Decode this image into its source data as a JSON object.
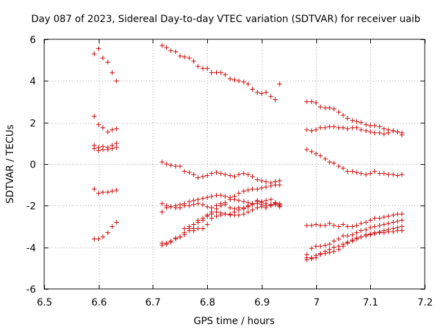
{
  "chart_data": {
    "type": "scatter",
    "title": "Day 087 of 2023, Sidereal Day-to-day VTEC variation (SDTVAR) for receiver uaib",
    "xlabel": "GPS time / hours",
    "ylabel": "SDTVAR / TECUs",
    "xlim": [
      6.5,
      7.2
    ],
    "ylim": [
      -6,
      6
    ],
    "xticks": [
      6.5,
      6.6,
      6.7,
      6.8,
      6.9,
      7.0,
      7.1,
      7.2
    ],
    "xtick_labels": [
      "6.5",
      "6.6",
      "6.7",
      "6.8",
      "6.9",
      "7",
      "7.1",
      "7.2"
    ],
    "yticks": [
      -6,
      -4,
      -2,
      0,
      2,
      4,
      6
    ],
    "ytick_labels": [
      "-6",
      "-4",
      "-2",
      "0",
      "2",
      "4",
      "6"
    ],
    "grid": true,
    "marker": "+",
    "color": "#cc0000",
    "series": [
      {
        "name": "block1-top",
        "x": [
          6.592,
          6.6,
          6.608,
          6.617,
          6.625,
          6.633
        ],
        "y": [
          5.3,
          5.55,
          5.1,
          4.9,
          4.4,
          4.0
        ]
      },
      {
        "name": "block1-s2",
        "x": [
          6.592,
          6.6,
          6.608,
          6.617,
          6.625,
          6.633
        ],
        "y": [
          2.3,
          1.9,
          1.75,
          1.55,
          1.65,
          1.7
        ]
      },
      {
        "name": "block1-s3",
        "x": [
          6.592,
          6.6,
          6.608,
          6.617,
          6.625,
          6.633
        ],
        "y": [
          0.9,
          0.8,
          0.85,
          0.8,
          0.9,
          1.0
        ]
      },
      {
        "name": "block1-s4",
        "x": [
          6.592,
          6.6,
          6.608,
          6.617,
          6.625,
          6.633
        ],
        "y": [
          0.75,
          0.65,
          0.7,
          0.7,
          0.75,
          0.8
        ]
      },
      {
        "name": "block1-s5",
        "x": [
          6.592,
          6.6,
          6.608,
          6.617,
          6.625,
          6.633
        ],
        "y": [
          -1.2,
          -1.4,
          -1.35,
          -1.35,
          -1.3,
          -1.25
        ]
      },
      {
        "name": "block1-s6",
        "x": [
          6.592,
          6.6,
          6.608,
          6.617,
          6.625,
          6.633
        ],
        "y": [
          -3.6,
          -3.6,
          -3.5,
          -3.3,
          -3.0,
          -2.8
        ]
      },
      {
        "name": "block2-top",
        "x": [
          6.717,
          6.725,
          6.733,
          6.742,
          6.75,
          6.758,
          6.767,
          6.775,
          6.783,
          6.792,
          6.8,
          6.808,
          6.817,
          6.825,
          6.833,
          6.842,
          6.85,
          6.858,
          6.867,
          6.875,
          6.883,
          6.892,
          6.9,
          6.908,
          6.917,
          6.925,
          6.933
        ],
        "y": [
          5.7,
          5.6,
          5.45,
          5.4,
          5.2,
          5.15,
          5.1,
          4.95,
          4.7,
          4.6,
          4.6,
          4.4,
          4.4,
          4.4,
          4.3,
          4.1,
          4.05,
          4.0,
          3.95,
          3.85,
          3.6,
          3.45,
          3.4,
          3.45,
          3.25,
          3.1,
          3.85
        ]
      },
      {
        "name": "block2-s2",
        "x": [
          6.717,
          6.725,
          6.733,
          6.742,
          6.75,
          6.758,
          6.767,
          6.775,
          6.783,
          6.792,
          6.8,
          6.808,
          6.817,
          6.825,
          6.833,
          6.842,
          6.85,
          6.858,
          6.867,
          6.875,
          6.883,
          6.892,
          6.9,
          6.908,
          6.917,
          6.925,
          6.933
        ],
        "y": [
          0.1,
          0.0,
          -0.05,
          -0.1,
          -0.1,
          -0.35,
          -0.4,
          -0.5,
          -0.65,
          -0.6,
          -0.55,
          -0.45,
          -0.4,
          -0.45,
          -0.5,
          -0.55,
          -0.6,
          -0.5,
          -0.45,
          -0.5,
          -0.6,
          -0.75,
          -0.8,
          -0.85,
          -0.9,
          -0.85,
          -0.8
        ]
      },
      {
        "name": "block2-s3",
        "x": [
          6.717,
          6.725,
          6.733,
          6.742,
          6.75,
          6.758,
          6.767,
          6.775,
          6.783,
          6.792,
          6.8,
          6.808,
          6.817,
          6.825,
          6.833,
          6.842,
          6.85,
          6.858,
          6.867,
          6.875,
          6.883,
          6.892,
          6.9,
          6.908,
          6.917,
          6.925,
          6.933
        ],
        "y": [
          -1.9,
          -2.0,
          -2.05,
          -2.0,
          -1.95,
          -1.9,
          -1.8,
          -1.75,
          -1.7,
          -1.65,
          -1.6,
          -1.55,
          -1.5,
          -1.5,
          -1.55,
          -1.6,
          -1.7,
          -1.75,
          -1.8,
          -1.85,
          -1.9,
          -1.9,
          -1.95,
          -2.0,
          -1.95,
          -1.9,
          -2.0
        ]
      },
      {
        "name": "block2-s4",
        "x": [
          6.717,
          6.725,
          6.733,
          6.742,
          6.75,
          6.758,
          6.767,
          6.775,
          6.783,
          6.792,
          6.8,
          6.808,
          6.817,
          6.825,
          6.833,
          6.842,
          6.85,
          6.858,
          6.867,
          6.875,
          6.883,
          6.892,
          6.9,
          6.908,
          6.917,
          6.925,
          6.933
        ],
        "y": [
          -2.3,
          -2.1,
          -2.05,
          -2.1,
          -2.1,
          -2.0,
          -2.0,
          -1.95,
          -1.9,
          -1.95,
          -2.05,
          -2.1,
          -2.0,
          -1.9,
          -1.95,
          -2.1,
          -2.15,
          -2.2,
          -2.15,
          -2.05,
          -1.95,
          -1.8,
          -1.85,
          -1.9,
          -1.95,
          -1.85,
          -1.9
        ]
      },
      {
        "name": "block2-s5",
        "x": [
          6.758,
          6.767,
          6.775,
          6.783,
          6.792,
          6.8,
          6.808,
          6.817,
          6.825,
          6.833,
          6.842,
          6.85,
          6.858,
          6.867,
          6.875,
          6.883,
          6.892,
          6.9,
          6.908,
          6.917,
          6.925,
          6.933
        ],
        "y": [
          -3.1,
          -3.0,
          -3.1,
          -2.8,
          -2.7,
          -2.5,
          -2.4,
          -2.3,
          -2.35,
          -2.4,
          -2.4,
          -2.3,
          -2.1,
          -2.1,
          -2.0,
          -1.9,
          -1.75,
          -1.8,
          -1.75,
          -1.7,
          -1.85,
          -1.95
        ]
      },
      {
        "name": "block2-s6",
        "x": [
          6.717,
          6.725,
          6.733,
          6.742,
          6.75,
          6.758,
          6.767,
          6.775,
          6.783,
          6.792,
          6.8,
          6.808,
          6.817,
          6.825,
          6.833,
          6.842,
          6.85,
          6.858,
          6.867,
          6.875,
          6.883,
          6.892,
          6.9,
          6.908,
          6.917,
          6.925,
          6.933
        ],
        "y": [
          -3.9,
          -3.85,
          -3.7,
          -3.55,
          -3.5,
          -3.4,
          -3.2,
          -3.2,
          -3.1,
          -3.1,
          -2.9,
          -2.6,
          -2.5,
          -2.45,
          -2.4,
          -2.45,
          -2.45,
          -2.45,
          -2.4,
          -2.3,
          -2.2,
          -2.1,
          -2.05,
          -2.1,
          -2.0,
          -1.95,
          -2.05
        ]
      },
      {
        "name": "block2-s7",
        "x": [
          6.717,
          6.725,
          6.733,
          6.742,
          6.75,
          6.758,
          6.767,
          6.775,
          6.783,
          6.792,
          6.8,
          6.808,
          6.817,
          6.825,
          6.833,
          6.842,
          6.85,
          6.858,
          6.867,
          6.875,
          6.883,
          6.892,
          6.9,
          6.908,
          6.917,
          6.925,
          6.933
        ],
        "y": [
          -3.8,
          -3.8,
          -3.75,
          -3.6,
          -3.5,
          -3.3,
          -3.1,
          -2.9,
          -2.7,
          -2.6,
          -2.45,
          -2.3,
          -2.15,
          -2.0,
          -1.85,
          -1.7,
          -1.55,
          -1.4,
          -1.3,
          -1.25,
          -1.2,
          -1.2,
          -1.15,
          -1.1,
          -1.05,
          -1.0,
          -1.0
        ]
      },
      {
        "name": "block3-s1",
        "x": [
          6.983,
          6.992,
          7.0,
          7.008,
          7.017,
          7.025,
          7.033,
          7.042,
          7.05,
          7.058,
          7.067,
          7.075,
          7.083,
          7.092,
          7.1,
          7.108,
          7.117,
          7.125,
          7.133,
          7.142,
          7.15,
          7.158
        ],
        "y": [
          3.0,
          3.0,
          2.95,
          2.75,
          2.7,
          2.7,
          2.65,
          2.5,
          2.35,
          2.2,
          2.1,
          2.05,
          2.0,
          1.9,
          1.85,
          1.85,
          1.8,
          1.7,
          1.65,
          1.6,
          1.55,
          1.5
        ]
      },
      {
        "name": "block3-s2",
        "x": [
          6.983,
          6.992,
          7.0,
          7.008,
          7.017,
          7.025,
          7.033,
          7.042,
          7.05,
          7.058,
          7.067,
          7.075,
          7.083,
          7.092,
          7.1,
          7.108,
          7.117,
          7.125,
          7.133,
          7.142,
          7.15,
          7.158
        ],
        "y": [
          1.65,
          1.6,
          1.65,
          1.75,
          1.75,
          1.8,
          1.8,
          1.75,
          1.75,
          1.7,
          1.75,
          1.75,
          1.65,
          1.6,
          1.55,
          1.5,
          1.5,
          1.45,
          1.5,
          1.6,
          1.55,
          1.4
        ]
      },
      {
        "name": "block3-s3",
        "x": [
          6.983,
          6.992,
          7.0,
          7.008,
          7.017,
          7.025,
          7.033,
          7.042,
          7.05,
          7.058,
          7.067,
          7.075,
          7.083,
          7.092,
          7.1,
          7.108,
          7.117,
          7.125,
          7.133,
          7.142,
          7.15,
          7.158
        ],
        "y": [
          0.7,
          0.6,
          0.5,
          0.4,
          0.25,
          0.1,
          0.05,
          -0.1,
          -0.2,
          -0.35,
          -0.35,
          -0.4,
          -0.45,
          -0.5,
          -0.45,
          -0.35,
          -0.45,
          -0.45,
          -0.5,
          -0.5,
          -0.55,
          -0.5
        ]
      },
      {
        "name": "block3-s4",
        "x": [
          6.983,
          6.992,
          7.0,
          7.008,
          7.017,
          7.025,
          7.033,
          7.042,
          7.05,
          7.058,
          7.067,
          7.075,
          7.083,
          7.092,
          7.1,
          7.108,
          7.117,
          7.125,
          7.133,
          7.142,
          7.15,
          7.158
        ],
        "y": [
          -2.95,
          -2.95,
          -2.9,
          -2.95,
          -2.95,
          -2.85,
          -2.95,
          -3.0,
          -2.9,
          -3.0,
          -3.0,
          -2.95,
          -2.85,
          -2.8,
          -2.7,
          -2.6,
          -2.6,
          -2.55,
          -2.5,
          -2.45,
          -2.4,
          -2.4
        ]
      },
      {
        "name": "block3-s5",
        "x": [
          6.983,
          6.992,
          7.0,
          7.008,
          7.017,
          7.025,
          7.033,
          7.042,
          7.05,
          7.058,
          7.067,
          7.075,
          7.083,
          7.092,
          7.1,
          7.108,
          7.117,
          7.125,
          7.133,
          7.142,
          7.15,
          7.158
        ],
        "y": [
          -4.35,
          -4.05,
          -3.95,
          -3.95,
          -3.9,
          -3.85,
          -3.7,
          -3.6,
          -3.45,
          -3.45,
          -3.4,
          -3.3,
          -3.2,
          -3.15,
          -3.05,
          -3.0,
          -2.95,
          -2.9,
          -2.85,
          -2.8,
          -2.75,
          -2.7
        ]
      },
      {
        "name": "block3-s6",
        "x": [
          6.983,
          6.992,
          7.0,
          7.008,
          7.017,
          7.025,
          7.033,
          7.042,
          7.05,
          7.058,
          7.067,
          7.075,
          7.083,
          7.092,
          7.1,
          7.108,
          7.117,
          7.125,
          7.133,
          7.142,
          7.15,
          7.158
        ],
        "y": [
          -4.5,
          -4.5,
          -4.4,
          -4.3,
          -4.2,
          -4.1,
          -4.0,
          -3.95,
          -3.85,
          -3.75,
          -3.65,
          -3.55,
          -3.5,
          -3.4,
          -3.35,
          -3.3,
          -3.25,
          -3.2,
          -3.15,
          -3.1,
          -3.05,
          -3.0
        ]
      },
      {
        "name": "block3-s7",
        "x": [
          6.983,
          6.992,
          7.0,
          7.008,
          7.017,
          7.025,
          7.033,
          7.042,
          7.05,
          7.058,
          7.067,
          7.075,
          7.083,
          7.092,
          7.1,
          7.108,
          7.117,
          7.125,
          7.133,
          7.142,
          7.15,
          7.158
        ],
        "y": [
          -4.6,
          -4.55,
          -4.5,
          -4.35,
          -4.3,
          -4.25,
          -4.2,
          -4.1,
          -3.95,
          -3.8,
          -3.7,
          -3.6,
          -3.5,
          -3.45,
          -3.4,
          -3.35,
          -3.3,
          -3.3,
          -3.25,
          -3.25,
          -3.2,
          -3.2
        ]
      }
    ]
  }
}
